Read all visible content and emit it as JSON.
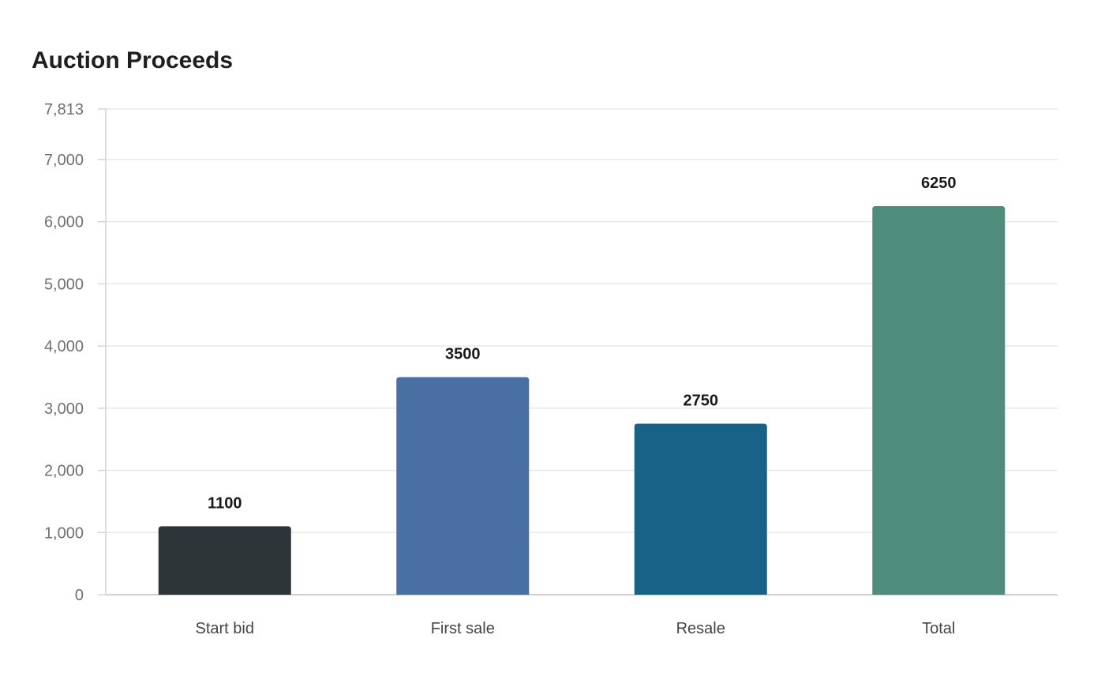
{
  "chart_data": {
    "type": "bar",
    "title": "Auction Proceeds",
    "categories": [
      "Start bid",
      "First sale",
      "Resale",
      "Total"
    ],
    "values": [
      1100,
      3500,
      2750,
      6250
    ],
    "colors": [
      "#2d3538",
      "#4a6fa3",
      "#196287",
      "#4e8d7b"
    ],
    "yticks": [
      0,
      1000,
      2000,
      3000,
      4000,
      5000,
      6000,
      7000,
      7813
    ],
    "ytick_labels": [
      "0",
      "1,000",
      "2,000",
      "3,000",
      "4,000",
      "5,000",
      "6,000",
      "7,000",
      "7,813"
    ],
    "ylim": [
      0,
      7813
    ],
    "xlabel": "",
    "ylabel": "",
    "grid": true,
    "data_labels": true
  }
}
